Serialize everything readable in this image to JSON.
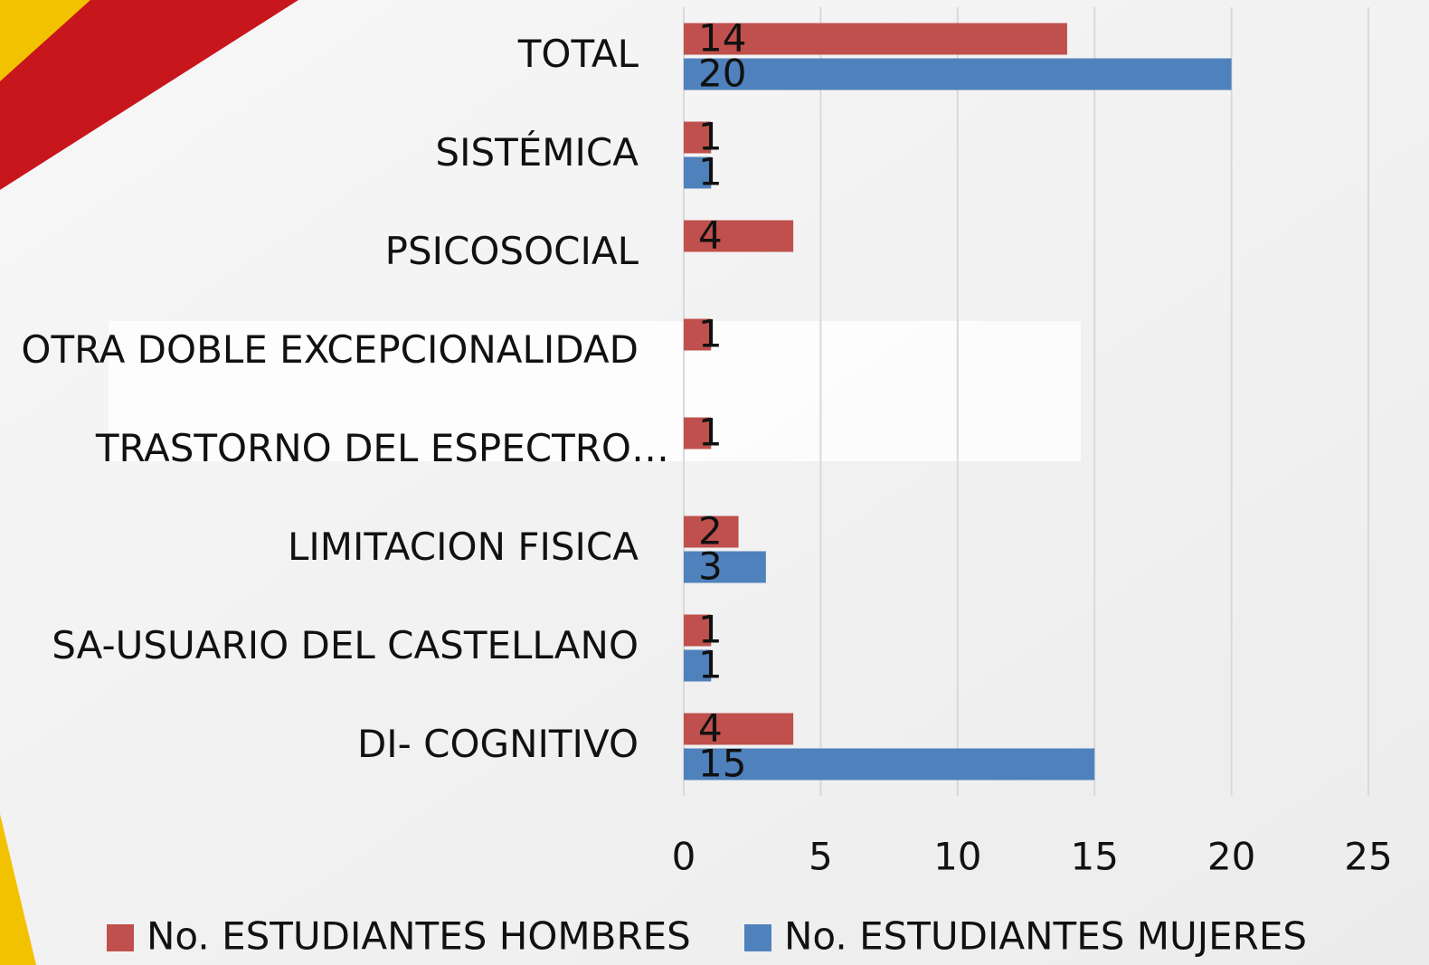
{
  "chart_data": {
    "type": "barh",
    "categories": [
      "TOTAL",
      "SISTÉMICA",
      "PSICOSOCIAL",
      "OTRA DOBLE EXCEPCIONALIDAD",
      "TRASTORNO DEL ESPECTRO…",
      "LIMITACION FISICA",
      "SA-USUARIO DEL CASTELLANO",
      "DI- COGNITIVO"
    ],
    "series": [
      {
        "name": "No. ESTUDIANTES HOMBRES",
        "color": "#c0504d",
        "values": [
          14,
          1,
          4,
          1,
          1,
          2,
          1,
          4
        ]
      },
      {
        "name": "No. ESTUDIANTES MUJERES",
        "color": "#4f81bd",
        "values": [
          20,
          1,
          null,
          null,
          null,
          3,
          1,
          15
        ]
      }
    ],
    "xlim": [
      0,
      25
    ],
    "xticks": [
      0,
      5,
      10,
      15,
      20,
      25
    ],
    "grid": true,
    "legend": "bottom"
  }
}
